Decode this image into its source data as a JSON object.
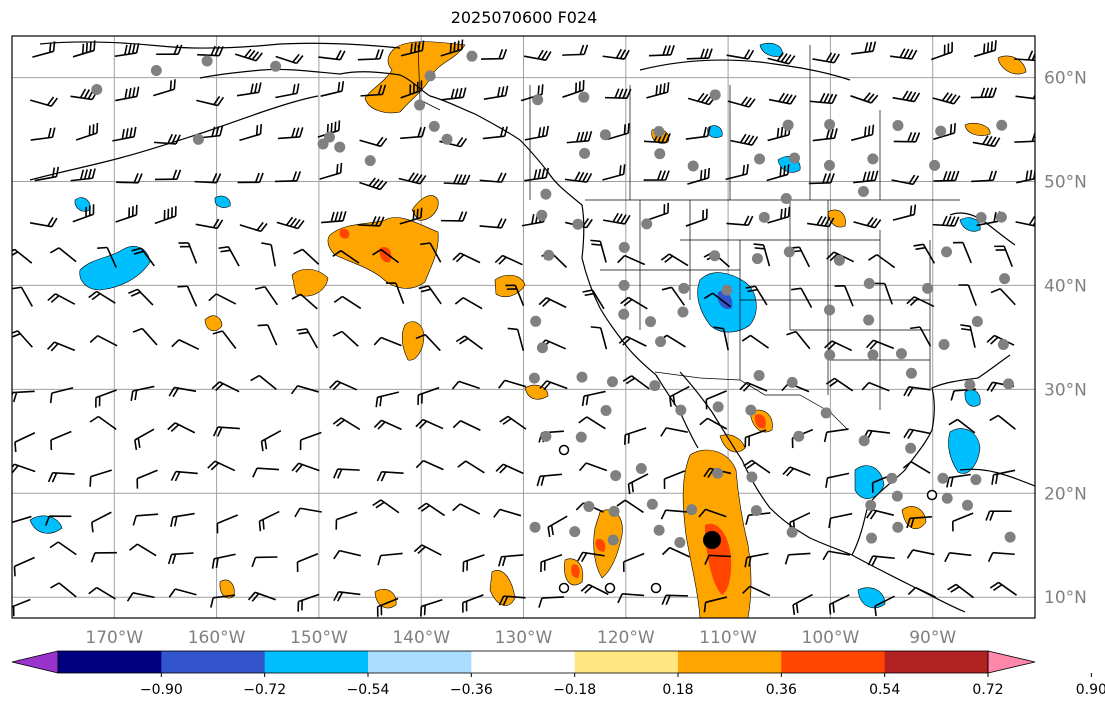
{
  "title": "2025070600 F024",
  "map": {
    "projection": "equirectangular",
    "lon_range": [
      -180,
      -80
    ],
    "lat_range": [
      8,
      64
    ],
    "gridlines": true,
    "lon_labels": [
      "170°W",
      "160°W",
      "150°W",
      "140°W",
      "130°W",
      "120°W",
      "110°W",
      "100°W",
      "90°W"
    ],
    "lat_labels": [
      "60°N",
      "50°N",
      "40°N",
      "30°N",
      "20°N",
      "10°N"
    ],
    "colorbar": {
      "colors": [
        "#9933cc",
        "#000080",
        "#3355cc",
        "#00bfff",
        "#aaddff",
        "#ffffff",
        "#ffe680",
        "#ffa500",
        "#ff4500",
        "#b22222",
        "#ff88aa"
      ],
      "tick_labels": [
        "−0.90",
        "−0.72",
        "−0.54",
        "−0.36",
        "−0.18",
        "0.18",
        "0.36",
        "0.54",
        "0.72",
        "0.90"
      ],
      "extend": "both"
    },
    "field_colors": {
      "positive_light": "#ffe680",
      "positive": "#ffa500",
      "positive_strong": "#ff4500",
      "negative_light": "#aaddff",
      "negative": "#00bfff",
      "negative_strong": "#3355cc"
    },
    "marker_colors": {
      "station": "#808080",
      "storm": "#000000"
    }
  }
}
